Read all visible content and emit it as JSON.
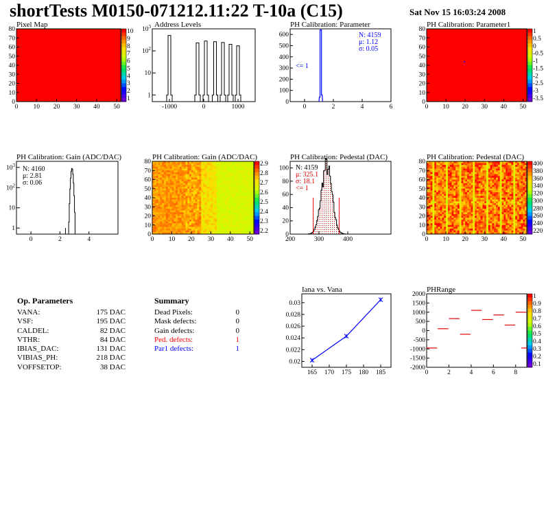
{
  "header": {
    "title": "shortTests M0150-071212.11:22 T-10a (C15)",
    "date": "Sat Nov 15 16:03:24 2008"
  },
  "op_params": {
    "title": "Op. Parameters",
    "rows": [
      {
        "name": "VANA:",
        "value": "175 DAC"
      },
      {
        "name": "VSF:",
        "value": "195 DAC"
      },
      {
        "name": "CALDEL:",
        "value": "82 DAC"
      },
      {
        "name": "VTHR:",
        "value": "84 DAC"
      },
      {
        "name": "IBIAS_DAC:",
        "value": "131 DAC"
      },
      {
        "name": "VIBIAS_PH:",
        "value": "218 DAC"
      },
      {
        "name": "VOFFSETOP:",
        "value": "38 DAC"
      }
    ]
  },
  "summary": {
    "title": "Summary",
    "rows": [
      {
        "name": "Dead Pixels:",
        "value": "0",
        "color": "#000000"
      },
      {
        "name": "Mask defects:",
        "value": "0",
        "color": "#000000"
      },
      {
        "name": "Gain defects:",
        "value": "0",
        "color": "#000000"
      },
      {
        "name": "Ped. defects:",
        "value": "1",
        "color": "#ff0000"
      },
      {
        "name": "Par1 defects:",
        "value": "1",
        "color": "#0000ff"
      }
    ]
  },
  "chart_data": [
    {
      "id": "pixelmap",
      "type": "heatmap",
      "title": "Pixel Map",
      "xlim": [
        0,
        52
      ],
      "ylim": [
        0,
        80
      ],
      "xticks": [
        "0",
        "10",
        "20",
        "30",
        "40",
        "50"
      ],
      "yticks": [
        "0",
        "10",
        "20",
        "30",
        "40",
        "50",
        "60",
        "70",
        "80"
      ],
      "uniform_value": 10,
      "palette_labels": [
        "10",
        "9",
        "8",
        "7",
        "6",
        "5",
        "4",
        "3",
        "2",
        "1"
      ]
    },
    {
      "id": "addr",
      "type": "line",
      "title": "Address Levels",
      "xlim": [
        -1500,
        1500
      ],
      "log_y": true,
      "ylim": [
        0.5,
        1000
      ],
      "xticks": [
        "-1000",
        "0",
        "1000"
      ],
      "yticks": [
        "1",
        "10",
        "10^2",
        "10^3"
      ],
      "peaks": [
        {
          "center": -1000,
          "height": 500
        },
        {
          "center": -180,
          "height": 230
        },
        {
          "center": 60,
          "height": 280
        },
        {
          "center": 330,
          "height": 260
        },
        {
          "center": 560,
          "height": 240
        },
        {
          "center": 780,
          "height": 200
        },
        {
          "center": 1000,
          "height": 170
        }
      ]
    },
    {
      "id": "phpar",
      "type": "bar",
      "title": "PH Calibration: Parameter",
      "xlim": [
        -1,
        6
      ],
      "ylim": [
        0,
        650
      ],
      "xticks": [
        "0",
        "2",
        "4",
        "6"
      ],
      "yticks": [
        "0",
        "100",
        "200",
        "300",
        "400",
        "500",
        "600"
      ],
      "bins": [
        {
          "x": 1.05,
          "y": 40
        },
        {
          "x": 1.1,
          "y": 640
        },
        {
          "x": 1.15,
          "y": 640
        },
        {
          "x": 1.2,
          "y": 60
        }
      ],
      "stats": [
        "N: 4159",
        "μ: 1.12",
        "σ: 0.05"
      ],
      "note": "<= 1"
    },
    {
      "id": "phpar1",
      "type": "heatmap",
      "title": "PH Calibration: Parameter1",
      "xlim": [
        0,
        52
      ],
      "ylim": [
        0,
        80
      ],
      "xticks": [
        "0",
        "10",
        "20",
        "30",
        "40",
        "50"
      ],
      "yticks": [
        "0",
        "10",
        "20",
        "30",
        "40",
        "50",
        "60",
        "70",
        "80"
      ],
      "uniform_value": 1,
      "palette_labels": [
        "1",
        "0.5",
        "0",
        "-0.5",
        "-1",
        "-1.5",
        "-2",
        "-2.5",
        "-3",
        "-3.5"
      ]
    },
    {
      "id": "gainhist",
      "type": "line",
      "title": "PH Calibration: Gain (ADC/DAC)",
      "xlim": [
        -1,
        6
      ],
      "log_y": true,
      "ylim": [
        0.5,
        2000
      ],
      "xticks": [
        "0",
        "2",
        "4"
      ],
      "yticks": [
        "1",
        "10",
        "10^2",
        "10^3"
      ],
      "stats": [
        "N: 4160",
        "μ: 2.81",
        "σ: 0.06"
      ],
      "mean": 2.81,
      "sigma": 0.06,
      "peak": 900
    },
    {
      "id": "gainmap",
      "type": "heatmap",
      "title": "PH Calibration: Gain (ADC/DAC)",
      "xlim": [
        0,
        52
      ],
      "ylim": [
        0,
        80
      ],
      "xticks": [
        "0",
        "10",
        "20",
        "30",
        "40",
        "50"
      ],
      "yticks": [
        "0",
        "10",
        "20",
        "30",
        "40",
        "50",
        "60",
        "70",
        "80"
      ],
      "palette_labels": [
        "2.9",
        "2.8",
        "2.7",
        "2.6",
        "2.5",
        "2.4",
        "2.3",
        "2.2"
      ]
    },
    {
      "id": "pedhist",
      "type": "bar",
      "title": "PH Calibration: Pedestal (DAC)",
      "xlim": [
        200,
        550
      ],
      "ylim": [
        0,
        110
      ],
      "xticks": [
        "200",
        "300",
        "400"
      ],
      "yticks": [
        "0",
        "20",
        "40",
        "60",
        "80",
        "100"
      ],
      "stats": [
        "N: 4159",
        "μ: 325.1",
        "σ: 18.1",
        "<= 1"
      ],
      "mean": 325.1,
      "sigma": 18.1,
      "peak": 103,
      "cut_lines": [
        280,
        370
      ]
    },
    {
      "id": "pedmap",
      "type": "heatmap",
      "title": "PH Calibration: Pedestal (DAC)",
      "xlim": [
        0,
        52
      ],
      "ylim": [
        0,
        80
      ],
      "xticks": [
        "0",
        "10",
        "20",
        "30",
        "40",
        "50"
      ],
      "yticks": [
        "0",
        "10",
        "20",
        "30",
        "40",
        "50",
        "60",
        "70",
        "80"
      ],
      "palette_labels": [
        "400",
        "380",
        "360",
        "340",
        "320",
        "300",
        "280",
        "260",
        "240",
        "220"
      ]
    },
    {
      "id": "iana",
      "type": "line",
      "title": "Iana vs. Vana",
      "xlim": [
        162,
        188
      ],
      "ylim": [
        0.019,
        0.0315
      ],
      "xticks": [
        "165",
        "170",
        "175",
        "180",
        "185"
      ],
      "yticks": [
        "0.02",
        "0.022",
        "0.024",
        "0.026",
        "0.028",
        "0.03"
      ],
      "x": [
        165,
        175,
        185
      ],
      "y": [
        0.0202,
        0.0243,
        0.0305
      ]
    },
    {
      "id": "phrange",
      "type": "scatter",
      "title": "PHRange",
      "xlim": [
        0,
        9
      ],
      "ylim": [
        -2000,
        2000
      ],
      "xticks": [
        "0",
        "2",
        "4",
        "6",
        "8"
      ],
      "yticks": [
        "2000",
        "1500",
        "1000",
        "500",
        "0",
        "-500",
        "-1000",
        "-1500",
        "-2000"
      ],
      "segments": [
        {
          "x": 0,
          "y": -950
        },
        {
          "x": 1,
          "y": 100
        },
        {
          "x": 2,
          "y": 650
        },
        {
          "x": 3,
          "y": -200
        },
        {
          "x": 4,
          "y": 1100
        },
        {
          "x": 5,
          "y": 600
        },
        {
          "x": 6,
          "y": 850
        },
        {
          "x": 7,
          "y": 300
        },
        {
          "x": 8,
          "y": 1000
        },
        {
          "x": 8.5,
          "y": -950
        }
      ],
      "palette_labels": [
        "1",
        "0.9",
        "0.8",
        "0.7",
        "0.6",
        "0.5",
        "0.4",
        "0.3",
        "0.2",
        "0.1"
      ]
    }
  ]
}
